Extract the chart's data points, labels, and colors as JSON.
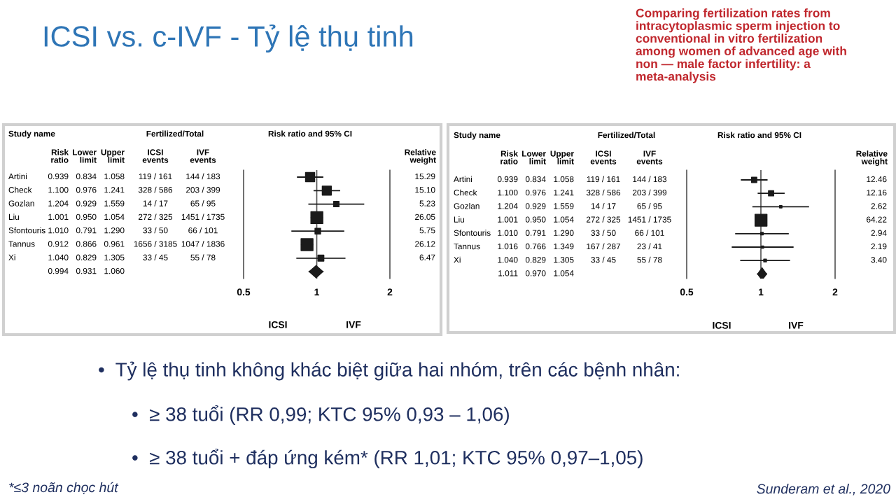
{
  "chart_data": [
    {
      "type": "other",
      "title": "ICSI vs. c-IVF - Tỷ lệ thụ tinh",
      "subtitle": "Comparing fertilization rates from\nintracytoplasmic sperm injection to\nconventional in vitro fertilization\namong women of advanced age with\nnon — male factor infertility: a\nmeta-analysis",
      "annotations": [
        "•  Tỷ lệ thụ tinh không khác biệt giữa hai nhóm, trên các bệnh nhân:",
        "•  ≥ 38 tuổi (RR 0,99; KTC 95% 0,93 – 1,06)",
        "•  ≥ 38 tuổi + đáp ứng kém* (RR 1,01; KTC 95% 0,97–1,05)",
        "*≤3 noãn chọc hút",
        "Sunderam et al., 2020"
      ]
    },
    {
      "type": "scatter",
      "orientation": "horizontal",
      "log": "x",
      "xlim": [
        0.5,
        2
      ],
      "xticks": [
        0.5,
        1,
        2
      ],
      "tick_labels": "x",
      "grid": false,
      "categories": [
        "Artini",
        "Check",
        "Gozlan",
        "Liu",
        "Sfontouris",
        "Tannus",
        "Xi",
        null
      ],
      "ref_lines": [
        {
          "axis": "x",
          "value": 1
        }
      ],
      "series": [
        {
          "type": "bubble",
          "marker": "square",
          "color": "#1a1a1a",
          "values": [
            0.939,
            1.1,
            1.204,
            1.001,
            1.01,
            0.912,
            1.04,
            null
          ],
          "errors": [
            [
              0.834,
              1.058
            ],
            [
              0.976,
              1.241
            ],
            [
              0.929,
              1.559
            ],
            [
              0.95,
              1.054
            ],
            [
              0.791,
              1.29
            ],
            [
              0.866,
              0.961
            ],
            [
              0.829,
              1.305
            ],
            null
          ],
          "sizes": [
            0.585,
            0.578,
            0.2,
            0.997,
            0.22,
            1,
            0.248,
            null
          ]
        },
        {
          "type": "scatter",
          "marker": "diamond",
          "color": "#1a1a1a",
          "values": [
            null,
            null,
            null,
            null,
            null,
            null,
            null,
            0.994
          ],
          "errors": [
            null,
            null,
            null,
            null,
            null,
            null,
            null,
            [
              0.931,
              1.06
            ]
          ]
        }
      ],
      "annotations": [
        "Study name",
        "Fertilized/Total",
        "Risk ratio and 95% CI",
        "Risk\nratio",
        "Lower\nlimit",
        "Upper\nlimit",
        "ICSI\nevents",
        "IVF\nevents",
        "Relative\nweight",
        "0.939",
        "0.834",
        "1.058",
        "119 / 161",
        "144 / 183",
        "15.29",
        "1.100",
        "0.976",
        "1.241",
        "328 / 586",
        "203 / 399",
        "15.10",
        "1.204",
        "0.929",
        "1.559",
        "14 / 17",
        "65 / 95",
        "5.23",
        "1.001",
        "0.950",
        "1.054",
        "272 / 325",
        "1451 / 1735",
        "26.05",
        "1.010",
        "0.791",
        "1.290",
        "33 / 50",
        "66 / 101",
        "5.75",
        "0.912",
        "0.866",
        "0.961",
        "1656 / 3185",
        "1047 / 1836",
        "26.12",
        "1.040",
        "0.829",
        "1.305",
        "33 / 45",
        "55 / 78",
        "6.47",
        "0.994",
        "0.931",
        "1.060",
        "ICSI",
        "IVF"
      ]
    },
    {
      "type": "scatter",
      "orientation": "horizontal",
      "log": "x",
      "xlim": [
        0.5,
        2
      ],
      "xticks": [
        0.5,
        1,
        2
      ],
      "tick_labels": "x",
      "grid": false,
      "categories": [
        "Artini",
        "Check",
        "Gozlan",
        "Liu",
        "Sfontouris",
        "Tannus",
        "Xi",
        null
      ],
      "ref_lines": [
        {
          "axis": "x",
          "value": 1
        }
      ],
      "series": [
        {
          "type": "bubble",
          "marker": "square",
          "color": "#1a1a1a",
          "values": [
            0.939,
            1.1,
            1.204,
            1.001,
            1.01,
            1.016,
            1.04,
            null
          ],
          "errors": [
            [
              0.834,
              1.058
            ],
            [
              0.976,
              1.241
            ],
            [
              0.929,
              1.559
            ],
            [
              0.95,
              1.054
            ],
            [
              0.791,
              1.29
            ],
            [
              0.766,
              1.349
            ],
            [
              0.829,
              1.305
            ],
            null
          ],
          "sizes": [
            0.194,
            0.189,
            0.041,
            1,
            0.046,
            0.034,
            0.053,
            null
          ]
        },
        {
          "type": "scatter",
          "marker": "diamond",
          "color": "#1a1a1a",
          "values": [
            null,
            null,
            null,
            null,
            null,
            null,
            null,
            1.011
          ],
          "errors": [
            null,
            null,
            null,
            null,
            null,
            null,
            null,
            [
              0.97,
              1.054
            ]
          ]
        }
      ],
      "annotations": [
        "Study name",
        "Fertilized/Total",
        "Risk ratio and 95% CI",
        "Risk\nratio",
        "Lower\nlimit",
        "Upper\nlimit",
        "ICSI\nevents",
        "IVF\nevents",
        "Relative\nweight",
        "0.939",
        "0.834",
        "1.058",
        "119 / 161",
        "144 / 183",
        "12.46",
        "1.100",
        "0.976",
        "1.241",
        "328 / 586",
        "203 / 399",
        "12.16",
        "1.204",
        "0.929",
        "1.559",
        "14 / 17",
        "65 / 95",
        "2.62",
        "1.001",
        "0.950",
        "1.054",
        "272 / 325",
        "1451 / 1735",
        "64.22",
        "1.010",
        "0.791",
        "1.290",
        "33 / 50",
        "66 / 101",
        "2.94",
        "1.016",
        "0.766",
        "1.349",
        "167 / 287",
        "23 / 41",
        "2.19",
        "1.040",
        "0.829",
        "1.305",
        "33 / 45",
        "55 / 78",
        "3.40",
        "1.011",
        "0.970",
        "1.054",
        "ICSI",
        "IVF"
      ]
    }
  ]
}
